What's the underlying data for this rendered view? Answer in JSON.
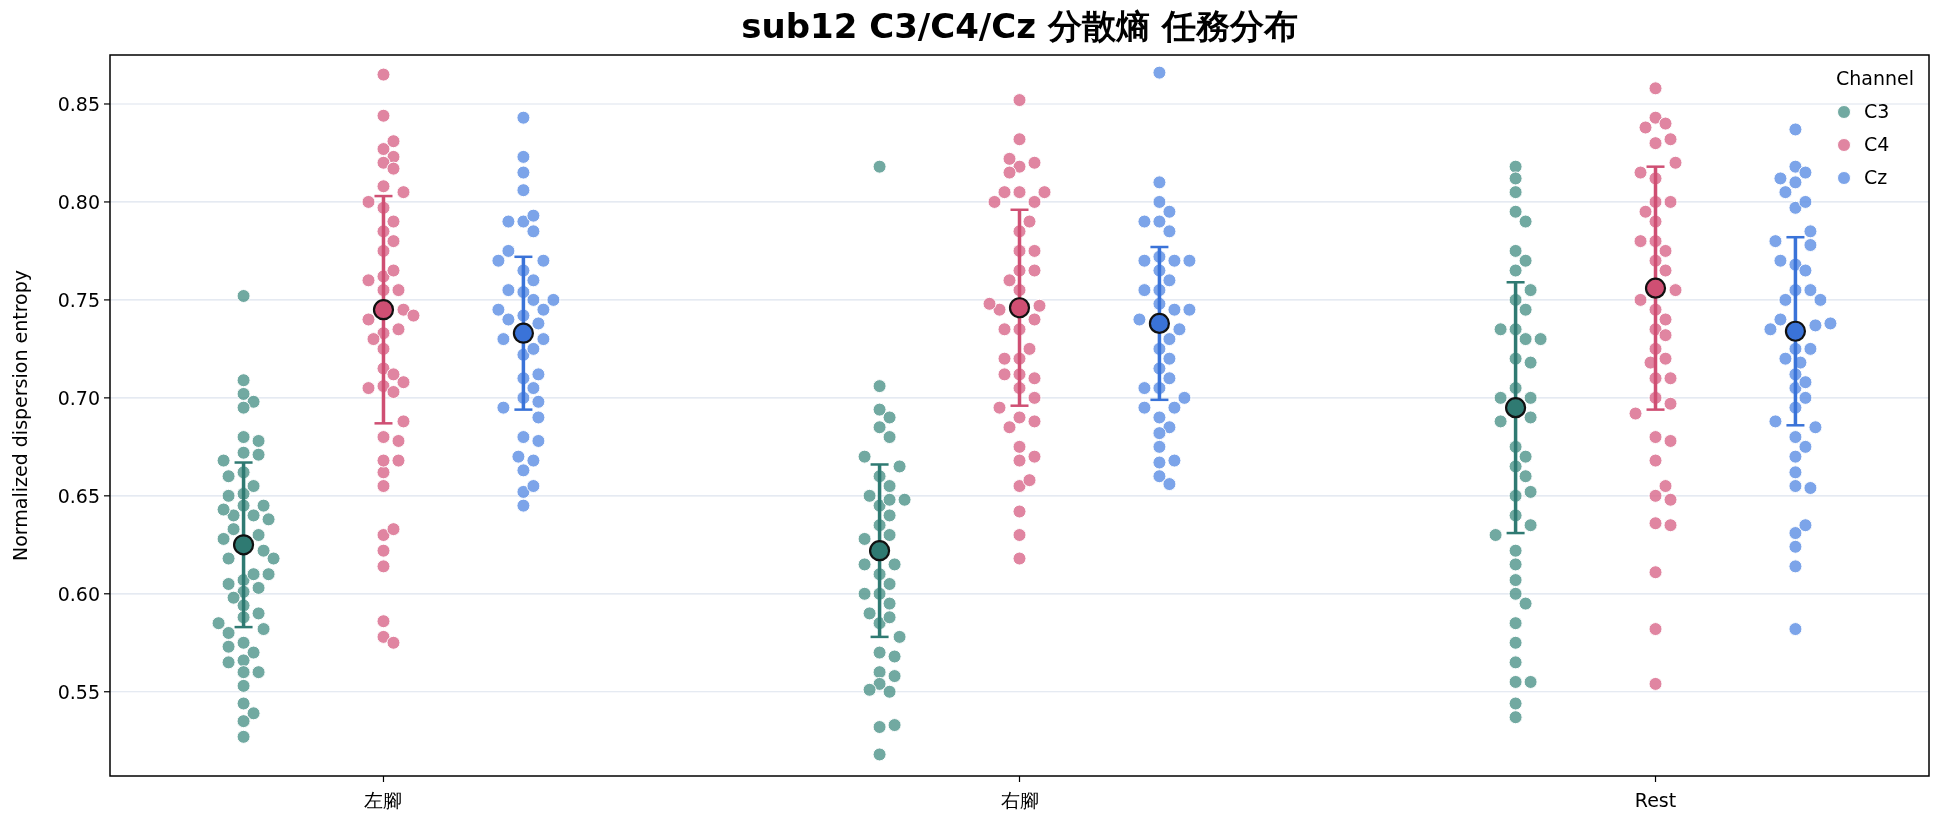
{
  "chart_data": {
    "type": "scatter",
    "title": "sub12 C3/C4/Cz 分散熵 任務分布",
    "ylabel": "Normalized dispersion entropy",
    "legend_title": "Channel",
    "legend": "top right",
    "grid": "y",
    "marker": "circle",
    "categories": [
      "左腳",
      "右腳",
      "Rest"
    ],
    "ylim": [
      0.507,
      0.875
    ],
    "yticks": [
      0.55,
      {
        "value": 0.6,
        "label": "0.60"
      },
      0.65,
      {
        "value": 0.7,
        "label": "0.70"
      },
      0.75,
      {
        "value": 0.8,
        "label": "0.80"
      },
      0.85
    ],
    "series": [
      {
        "name": "C3",
        "color": "#4e938a",
        "x": [
          "左腳",
          "左腳",
          "左腳",
          "左腳",
          "左腳",
          "左腳",
          "左腳",
          "左腳",
          "左腳",
          "左腳",
          "左腳",
          "左腳",
          "左腳",
          "左腳",
          "左腳",
          "左腳",
          "左腳",
          "左腳",
          "左腳",
          "左腳",
          "左腳",
          "左腳",
          "左腳",
          "左腳",
          "左腳",
          "左腳",
          "左腳",
          "左腳",
          "左腳",
          "左腳",
          "左腳",
          "左腳",
          "左腳",
          "左腳",
          "左腳",
          "左腳",
          "左腳",
          "左腳",
          "左腳",
          "左腳",
          "左腳",
          "左腳",
          "左腳",
          "左腳",
          "左腳",
          "左腳",
          "左腳",
          "左腳",
          "左腳",
          "左腳",
          "左腳",
          "左腳",
          "右腳",
          "右腳",
          "右腳",
          "右腳",
          "右腳",
          "右腳",
          "右腳",
          "右腳",
          "右腳",
          "右腳",
          "右腳",
          "右腳",
          "右腳",
          "右腳",
          "右腳",
          "右腳",
          "右腳",
          "右腳",
          "右腳",
          "右腳",
          "右腳",
          "右腳",
          "右腳",
          "右腳",
          "右腳",
          "右腳",
          "右腳",
          "右腳",
          "右腳",
          "右腳",
          "右腳",
          "右腳",
          "右腳",
          "右腳",
          "右腳",
          "右腳",
          "右腳",
          "右腳",
          "右腳",
          "Rest",
          "Rest",
          "Rest",
          "Rest",
          "Rest",
          "Rest",
          "Rest",
          "Rest",
          "Rest",
          "Rest",
          "Rest",
          "Rest",
          "Rest",
          "Rest",
          "Rest",
          "Rest",
          "Rest",
          "Rest",
          "Rest",
          "Rest",
          "Rest",
          "Rest",
          "Rest",
          "Rest",
          "Rest",
          "Rest",
          "Rest",
          "Rest",
          "Rest",
          "Rest",
          "Rest",
          "Rest",
          "Rest",
          "Rest",
          "Rest",
          "Rest",
          "Rest",
          "Rest",
          "Rest",
          "Rest",
          "Rest",
          "Rest",
          "Rest"
        ],
        "values": [
          0.752,
          0.702,
          0.709,
          0.698,
          0.695,
          0.68,
          0.678,
          0.671,
          0.672,
          0.668,
          0.651,
          0.645,
          0.662,
          0.655,
          0.66,
          0.65,
          0.64,
          0.64,
          0.645,
          0.643,
          0.638,
          0.63,
          0.633,
          0.628,
          0.622,
          0.618,
          0.618,
          0.607,
          0.601,
          0.61,
          0.605,
          0.61,
          0.603,
          0.594,
          0.588,
          0.59,
          0.598,
          0.582,
          0.58,
          0.585,
          0.575,
          0.57,
          0.566,
          0.573,
          0.565,
          0.56,
          0.56,
          0.553,
          0.544,
          0.539,
          0.535,
          0.527,
          0.818,
          0.706,
          0.694,
          0.69,
          0.685,
          0.68,
          0.665,
          0.67,
          0.66,
          0.655,
          0.645,
          0.648,
          0.65,
          0.648,
          0.635,
          0.63,
          0.628,
          0.64,
          0.615,
          0.61,
          0.615,
          0.605,
          0.6,
          0.595,
          0.6,
          0.585,
          0.59,
          0.578,
          0.588,
          0.57,
          0.568,
          0.56,
          0.558,
          0.554,
          0.55,
          0.551,
          0.532,
          0.533,
          0.518,
          0.818,
          0.812,
          0.795,
          0.805,
          0.79,
          0.775,
          0.77,
          0.765,
          0.755,
          0.75,
          0.745,
          0.735,
          0.73,
          0.735,
          0.73,
          0.72,
          0.718,
          0.705,
          0.7,
          0.7,
          0.675,
          0.69,
          0.688,
          0.67,
          0.665,
          0.66,
          0.65,
          0.652,
          0.635,
          0.63,
          0.64,
          0.622,
          0.615,
          0.607,
          0.6,
          0.595,
          0.585,
          0.575,
          0.565,
          0.555,
          0.555,
          0.544,
          0.537
        ]
      },
      {
        "name": "C4",
        "color": "#d8678a",
        "x": [
          "左腳",
          "左腳",
          "左腳",
          "左腳",
          "左腳",
          "左腳",
          "左腳",
          "左腳",
          "左腳",
          "左腳",
          "左腳",
          "左腳",
          "左腳",
          "左腳",
          "左腳",
          "左腳",
          "左腳",
          "左腳",
          "左腳",
          "左腳",
          "左腳",
          "左腳",
          "左腳",
          "左腳",
          "左腳",
          "左腳",
          "左腳",
          "左腳",
          "左腳",
          "左腳",
          "左腳",
          "左腳",
          "左腳",
          "左腳",
          "左腳",
          "左腳",
          "左腳",
          "左腳",
          "左腳",
          "左腳",
          "左腳",
          "左腳",
          "左腳",
          "左腳",
          "左腳",
          "左腳",
          "左腳",
          "右腳",
          "右腳",
          "右腳",
          "右腳",
          "右腳",
          "右腳",
          "右腳",
          "右腳",
          "右腳",
          "右腳",
          "右腳",
          "右腳",
          "右腳",
          "右腳",
          "右腳",
          "右腳",
          "右腳",
          "右腳",
          "右腳",
          "右腳",
          "右腳",
          "右腳",
          "右腳",
          "右腳",
          "右腳",
          "右腳",
          "右腳",
          "右腳",
          "右腳",
          "右腳",
          "右腳",
          "右腳",
          "右腳",
          "右腳",
          "右腳",
          "右腳",
          "右腳",
          "右腳",
          "右腳",
          "右腳",
          "右腳",
          "右腳",
          "右腳",
          "右腳",
          "右腳",
          "Rest",
          "Rest",
          "Rest",
          "Rest",
          "Rest",
          "Rest",
          "Rest",
          "Rest",
          "Rest",
          "Rest",
          "Rest",
          "Rest",
          "Rest",
          "Rest",
          "Rest",
          "Rest",
          "Rest",
          "Rest",
          "Rest",
          "Rest",
          "Rest",
          "Rest",
          "Rest",
          "Rest",
          "Rest",
          "Rest",
          "Rest",
          "Rest",
          "Rest",
          "Rest",
          "Rest",
          "Rest",
          "Rest",
          "Rest",
          "Rest",
          "Rest",
          "Rest",
          "Rest",
          "Rest",
          "Rest",
          "Rest",
          "Rest",
          "Rest"
        ],
        "values": [
          0.865,
          0.827,
          0.823,
          0.82,
          0.817,
          0.844,
          0.831,
          0.805,
          0.8,
          0.808,
          0.797,
          0.762,
          0.775,
          0.785,
          0.79,
          0.78,
          0.765,
          0.76,
          0.755,
          0.755,
          0.745,
          0.74,
          0.742,
          0.733,
          0.735,
          0.73,
          0.725,
          0.706,
          0.703,
          0.705,
          0.715,
          0.708,
          0.712,
          0.662,
          0.68,
          0.688,
          0.678,
          0.668,
          0.668,
          0.655,
          0.63,
          0.633,
          0.622,
          0.614,
          0.586,
          0.578,
          0.575,
          0.852,
          0.832,
          0.818,
          0.82,
          0.822,
          0.815,
          0.805,
          0.8,
          0.805,
          0.805,
          0.8,
          0.785,
          0.79,
          0.775,
          0.775,
          0.765,
          0.765,
          0.76,
          0.747,
          0.755,
          0.745,
          0.748,
          0.74,
          0.735,
          0.735,
          0.72,
          0.725,
          0.72,
          0.712,
          0.71,
          0.712,
          0.7,
          0.705,
          0.695,
          0.69,
          0.688,
          0.685,
          0.675,
          0.668,
          0.655,
          0.658,
          0.642,
          0.63,
          0.618,
          0.67,
          0.858,
          0.843,
          0.84,
          0.838,
          0.83,
          0.832,
          0.82,
          0.815,
          0.812,
          0.8,
          0.8,
          0.795,
          0.79,
          0.78,
          0.775,
          0.78,
          0.77,
          0.765,
          0.71,
          0.755,
          0.75,
          0.745,
          0.74,
          0.735,
          0.732,
          0.725,
          0.72,
          0.718,
          0.71,
          0.7,
          0.697,
          0.692,
          0.68,
          0.678,
          0.668,
          0.65,
          0.648,
          0.655,
          0.636,
          0.635,
          0.611,
          0.582,
          0.554
        ]
      },
      {
        "name": "Cz",
        "color": "#5b8de3",
        "x": [
          "左腳",
          "左腳",
          "左腳",
          "左腳",
          "左腳",
          "左腳",
          "左腳",
          "左腳",
          "左腳",
          "左腳",
          "左腳",
          "左腳",
          "左腳",
          "左腳",
          "左腳",
          "左腳",
          "左腳",
          "左腳",
          "左腳",
          "左腳",
          "左腳",
          "左腳",
          "左腳",
          "左腳",
          "左腳",
          "左腳",
          "左腳",
          "左腳",
          "左腳",
          "左腳",
          "左腳",
          "左腳",
          "左腳",
          "左腳",
          "左腳",
          "左腳",
          "左腳",
          "左腳",
          "左腳",
          "左腳",
          "左腳",
          "右腳",
          "右腳",
          "右腳",
          "右腳",
          "右腳",
          "右腳",
          "右腳",
          "右腳",
          "右腳",
          "右腳",
          "右腳",
          "右腳",
          "右腳",
          "右腳",
          "右腳",
          "右腳",
          "右腳",
          "右腳",
          "右腳",
          "右腳",
          "右腳",
          "右腳",
          "右腳",
          "右腳",
          "右腳",
          "右腳",
          "右腳",
          "右腳",
          "右腳",
          "右腳",
          "右腳",
          "右腳",
          "右腳",
          "右腳",
          "右腳",
          "右腳",
          "右腳",
          "右腳",
          "Rest",
          "Rest",
          "Rest",
          "Rest",
          "Rest",
          "Rest",
          "Rest",
          "Rest",
          "Rest",
          "Rest",
          "Rest",
          "Rest",
          "Rest",
          "Rest",
          "Rest",
          "Rest",
          "Rest",
          "Rest",
          "Rest",
          "Rest",
          "Rest",
          "Rest",
          "Rest",
          "Rest",
          "Rest",
          "Rest",
          "Rest",
          "Rest",
          "Rest",
          "Rest",
          "Rest",
          "Rest",
          "Rest",
          "Rest",
          "Rest",
          "Rest",
          "Rest",
          "Rest",
          "Rest",
          "Rest",
          "Rest",
          "Rest",
          "Rest",
          "Rest"
        ],
        "values": [
          0.843,
          0.815,
          0.823,
          0.806,
          0.79,
          0.793,
          0.79,
          0.785,
          0.77,
          0.775,
          0.77,
          0.765,
          0.754,
          0.75,
          0.76,
          0.755,
          0.742,
          0.738,
          0.74,
          0.745,
          0.745,
          0.75,
          0.722,
          0.73,
          0.725,
          0.73,
          0.71,
          0.705,
          0.712,
          0.7,
          0.698,
          0.68,
          0.69,
          0.695,
          0.678,
          0.663,
          0.668,
          0.67,
          0.652,
          0.645,
          0.655,
          0.866,
          0.81,
          0.8,
          0.795,
          0.79,
          0.785,
          0.79,
          0.772,
          0.77,
          0.765,
          0.77,
          0.77,
          0.755,
          0.76,
          0.755,
          0.745,
          0.748,
          0.74,
          0.745,
          0.735,
          0.73,
          0.725,
          0.72,
          0.715,
          0.71,
          0.705,
          0.705,
          0.695,
          0.69,
          0.695,
          0.685,
          0.682,
          0.675,
          0.667,
          0.668,
          0.66,
          0.656,
          0.7,
          0.837,
          0.818,
          0.815,
          0.81,
          0.812,
          0.797,
          0.8,
          0.805,
          0.785,
          0.78,
          0.778,
          0.768,
          0.765,
          0.77,
          0.755,
          0.755,
          0.75,
          0.75,
          0.737,
          0.74,
          0.735,
          0.738,
          0.725,
          0.725,
          0.72,
          0.718,
          0.712,
          0.705,
          0.708,
          0.7,
          0.695,
          0.685,
          0.68,
          0.688,
          0.675,
          0.662,
          0.67,
          0.655,
          0.654,
          0.631,
          0.624,
          0.635,
          0.614,
          0.582
        ]
      },
      {
        "type": "scatter",
        "marker": "circle",
        "color": "#2f7a72",
        "x": [
          "左腳",
          "右腳",
          "Rest"
        ],
        "values": [
          0.625,
          0.622,
          0.695
        ],
        "errors": [
          0.042,
          0.044,
          0.064
        ]
      },
      {
        "type": "scatter",
        "marker": "circle",
        "color": "#cf4f73",
        "x": [
          "左腳",
          "右腳",
          "Rest"
        ],
        "values": [
          0.745,
          0.746,
          0.756
        ],
        "errors": [
          0.058,
          0.05,
          0.062
        ]
      },
      {
        "type": "scatter",
        "marker": "circle",
        "color": "#3a73d8",
        "x": [
          "左腳",
          "右腳",
          "Rest"
        ],
        "values": [
          0.733,
          0.738,
          0.734
        ],
        "errors": [
          0.039,
          0.039,
          0.048
        ]
      }
    ]
  }
}
